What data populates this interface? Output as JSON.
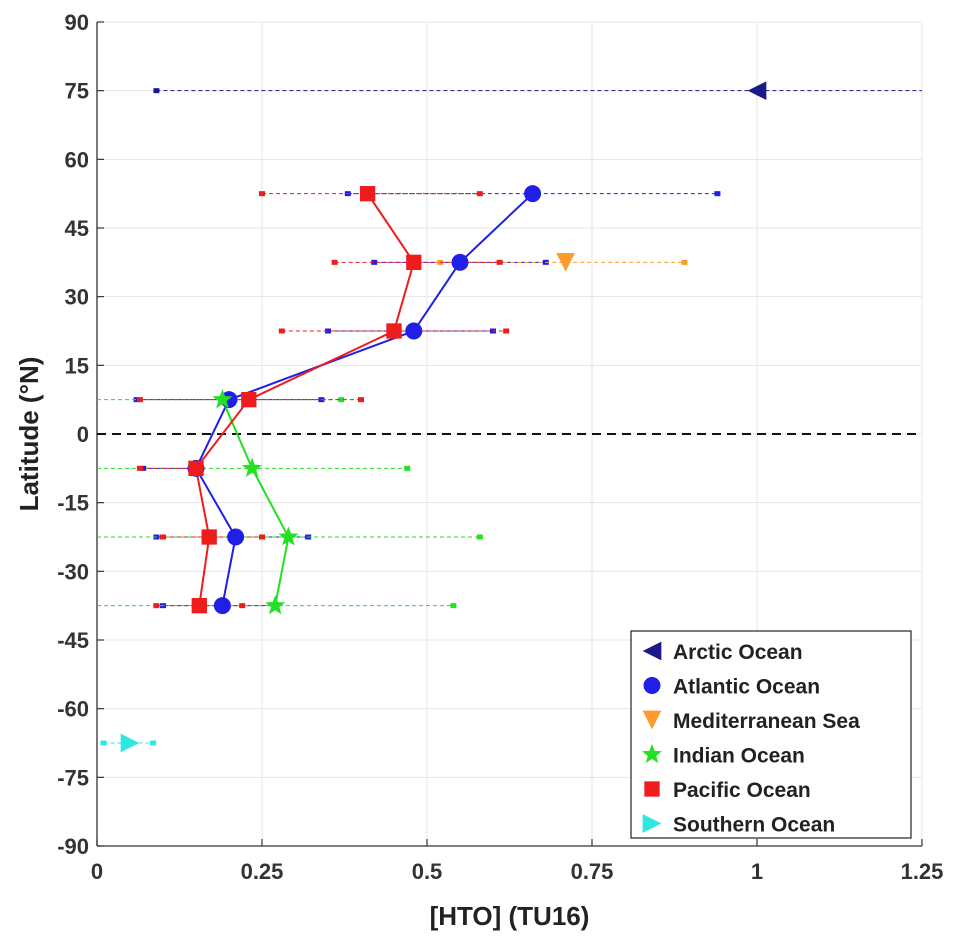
{
  "chart_data": {
    "type": "scatter",
    "title": "",
    "xlabel": "[HTO] (TU16)",
    "ylabel": "Latitude (°N)",
    "xlim": [
      0,
      1.25
    ],
    "ylim": [
      -90,
      90
    ],
    "xticks": [
      0,
      0.25,
      0.5,
      0.75,
      1,
      1.25
    ],
    "xtick_labels": [
      "0",
      "0.25",
      "0.5",
      "0.75",
      "1",
      "1.25"
    ],
    "yticks": [
      90,
      75,
      60,
      45,
      30,
      15,
      0,
      -15,
      -30,
      -45,
      -60,
      -75,
      -90
    ],
    "ytick_labels": [
      "90",
      "75",
      "60",
      "45",
      "30",
      "15",
      "0",
      "-15",
      "-30",
      "-45",
      "-60",
      "-75",
      "-90"
    ],
    "grid": true,
    "legend_position": "bottom-right",
    "reference_line": {
      "y": 0,
      "style": "dashed",
      "color": "#111111"
    },
    "series": [
      {
        "name": "Arctic Ocean",
        "color": "#1a1a8c",
        "marker": "triangle-left",
        "connect": false,
        "points": [
          {
            "x": 1.0,
            "y": 75,
            "xmin": 0.09,
            "xmax": 1.25
          }
        ]
      },
      {
        "name": "Atlantic Ocean",
        "color": "#1f1fe6",
        "marker": "circle",
        "connect": true,
        "points": [
          {
            "x": 0.66,
            "y": 52.5,
            "xmin": 0.38,
            "xmax": 0.94
          },
          {
            "x": 0.55,
            "y": 37.5,
            "xmin": 0.42,
            "xmax": 0.68
          },
          {
            "x": 0.48,
            "y": 22.5,
            "xmin": 0.35,
            "xmax": 0.6
          },
          {
            "x": 0.2,
            "y": 7.5,
            "xmin": 0.06,
            "xmax": 0.34
          },
          {
            "x": 0.15,
            "y": -7.5,
            "xmin": 0.07,
            "xmax": 0.15
          },
          {
            "x": 0.21,
            "y": -22.5,
            "xmin": 0.09,
            "xmax": 0.32
          },
          {
            "x": 0.19,
            "y": -37.5,
            "xmin": 0.1,
            "xmax": 0.27
          }
        ]
      },
      {
        "name": "Mediterranean Sea",
        "color": "#ff9a2e",
        "marker": "triangle-down",
        "connect": false,
        "points": [
          {
            "x": 0.71,
            "y": 37.5,
            "xmin": 0.52,
            "xmax": 0.89
          }
        ]
      },
      {
        "name": "Indian Ocean",
        "color": "#22e022",
        "marker": "star",
        "connect": true,
        "points": [
          {
            "x": 0.19,
            "y": 7.5,
            "xmin": 0.0,
            "xmax": 0.37
          },
          {
            "x": 0.235,
            "y": -7.5,
            "xmin": 0.0,
            "xmax": 0.47
          },
          {
            "x": 0.29,
            "y": -22.5,
            "xmin": 0.0,
            "xmax": 0.58
          },
          {
            "x": 0.27,
            "y": -37.5,
            "xmin": 0.0,
            "xmax": 0.54
          }
        ]
      },
      {
        "name": "Pacific Ocean",
        "color": "#ee1c1c",
        "marker": "square",
        "connect": true,
        "points": [
          {
            "x": 0.41,
            "y": 52.5,
            "xmin": 0.25,
            "xmax": 0.58
          },
          {
            "x": 0.48,
            "y": 37.5,
            "xmin": 0.36,
            "xmax": 0.61
          },
          {
            "x": 0.45,
            "y": 22.5,
            "xmin": 0.28,
            "xmax": 0.62
          },
          {
            "x": 0.23,
            "y": 7.5,
            "xmin": 0.065,
            "xmax": 0.4
          },
          {
            "x": 0.15,
            "y": -7.5,
            "xmin": 0.065,
            "xmax": 0.15
          },
          {
            "x": 0.17,
            "y": -22.5,
            "xmin": 0.1,
            "xmax": 0.25
          },
          {
            "x": 0.155,
            "y": -37.5,
            "xmin": 0.09,
            "xmax": 0.22
          }
        ]
      },
      {
        "name": "Southern Ocean",
        "color": "#2ee8e0",
        "marker": "triangle-right",
        "connect": false,
        "points": [
          {
            "x": 0.05,
            "y": -67.5,
            "xmin": 0.01,
            "xmax": 0.085
          }
        ]
      }
    ]
  }
}
